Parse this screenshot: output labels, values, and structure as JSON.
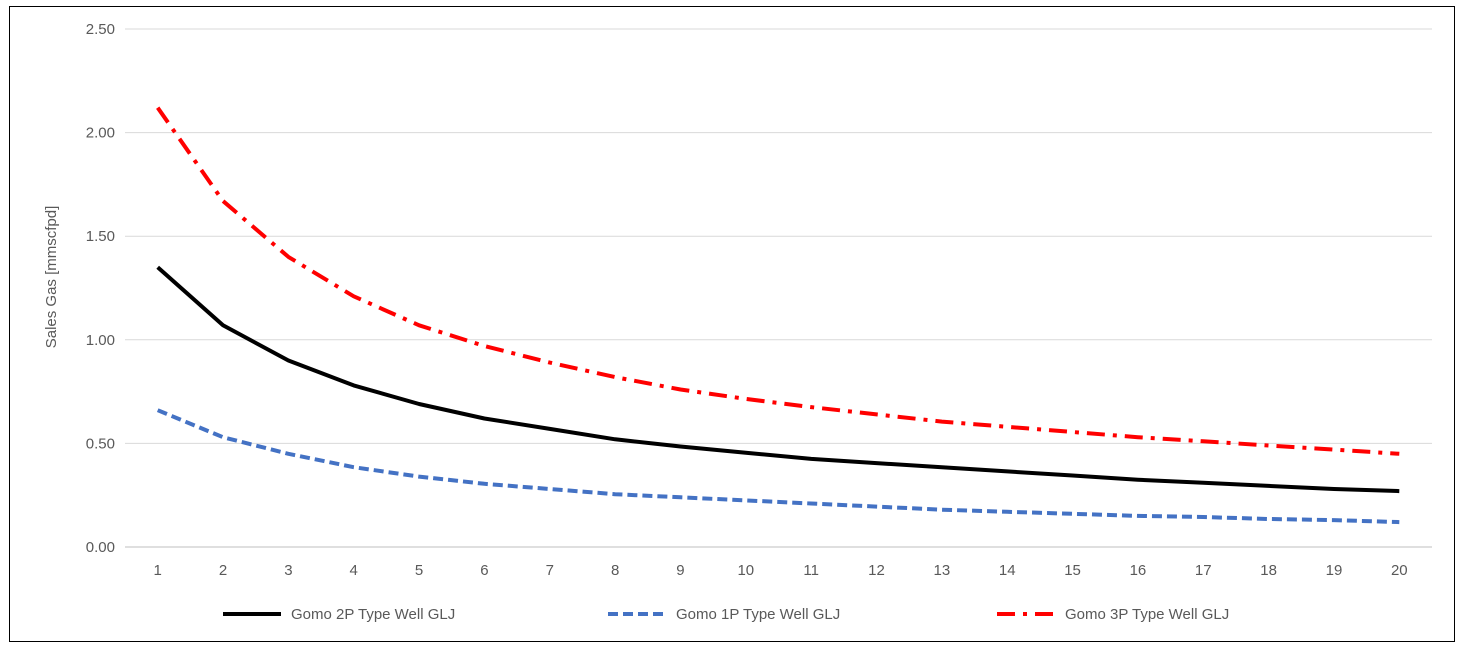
{
  "chart_data": {
    "type": "line",
    "title": "",
    "xlabel": "",
    "ylabel": "Sales Gas [mmscfpd]",
    "x": [
      1,
      2,
      3,
      4,
      5,
      6,
      7,
      8,
      9,
      10,
      11,
      12,
      13,
      14,
      15,
      16,
      17,
      18,
      19,
      20
    ],
    "ylim": [
      0,
      2.5
    ],
    "yticks": [
      "0.00",
      "0.50",
      "1.00",
      "1.50",
      "2.00",
      "2.50"
    ],
    "grid": "horizontal",
    "legend_position": "bottom",
    "series": [
      {
        "name": "Gomo 2P Type Well GLJ",
        "color": "#000000",
        "dash": "solid",
        "values": [
          1.35,
          1.07,
          0.9,
          0.78,
          0.69,
          0.62,
          0.57,
          0.52,
          0.485,
          0.455,
          0.425,
          0.405,
          0.385,
          0.365,
          0.345,
          0.325,
          0.31,
          0.295,
          0.28,
          0.27
        ]
      },
      {
        "name": "Gomo 1P Type Well GLJ",
        "color": "#4472C4",
        "dash": "dashed",
        "values": [
          0.66,
          0.53,
          0.45,
          0.385,
          0.34,
          0.305,
          0.28,
          0.255,
          0.24,
          0.225,
          0.21,
          0.195,
          0.18,
          0.17,
          0.16,
          0.15,
          0.145,
          0.135,
          0.13,
          0.12
        ]
      },
      {
        "name": "Gomo 3P Type Well GLJ",
        "color": "#FF0000",
        "dash": "dash-dot",
        "values": [
          2.12,
          1.67,
          1.4,
          1.21,
          1.07,
          0.97,
          0.89,
          0.82,
          0.76,
          0.715,
          0.675,
          0.64,
          0.605,
          0.58,
          0.555,
          0.53,
          0.51,
          0.49,
          0.47,
          0.45
        ]
      }
    ]
  }
}
